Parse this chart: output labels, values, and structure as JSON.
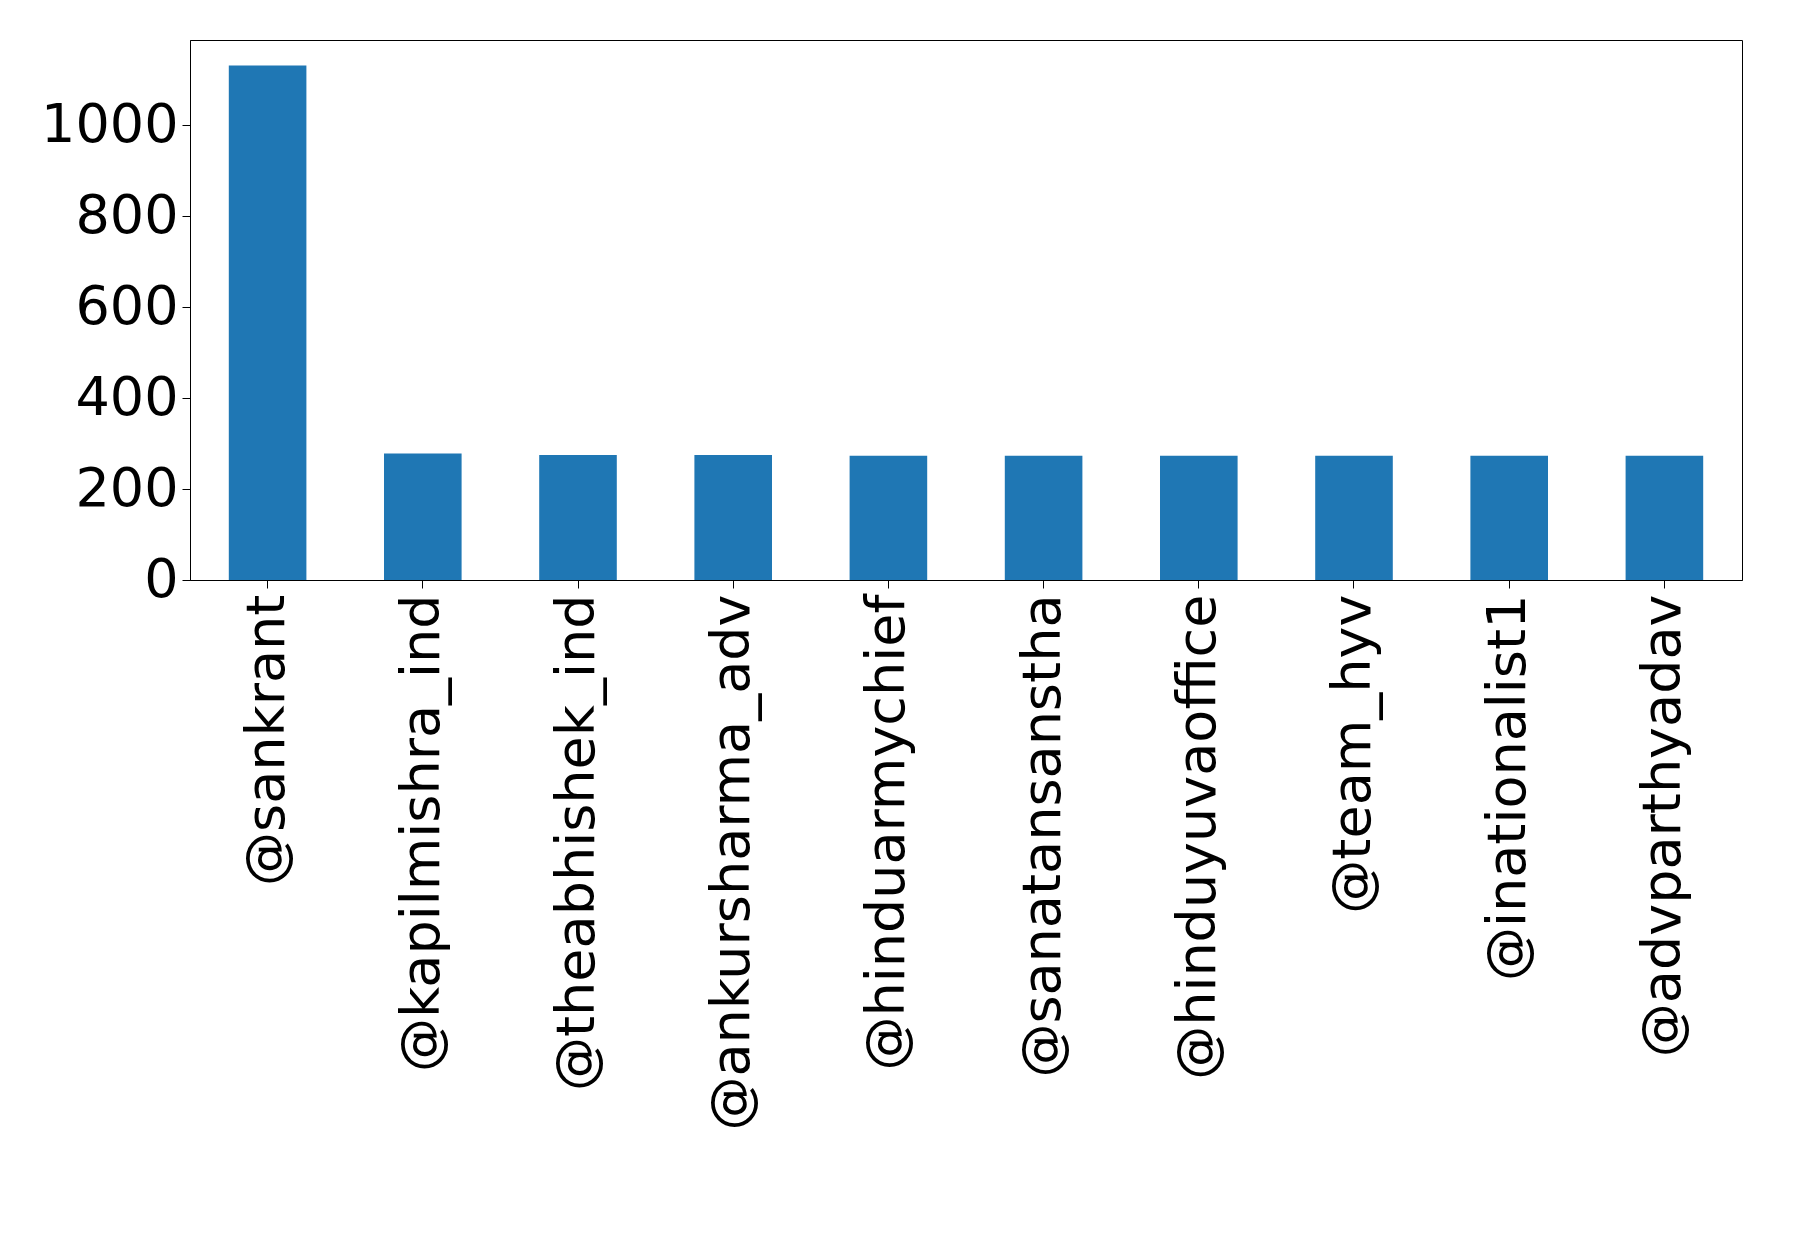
{
  "chart_data": {
    "type": "bar",
    "categories": [
      "@sankrant",
      "@kapilmishra_ind",
      "@theabhishek_ind",
      "@ankursharma_adv",
      "@hinduarmychief",
      "@sanatansanstha",
      "@hinduyuvaoffice",
      "@team_hyv",
      "@inationalist1",
      "@advparthyadav"
    ],
    "values": [
      1131,
      278,
      275,
      275,
      273,
      273,
      273,
      273,
      273,
      273
    ],
    "color": "#1f77b4",
    "ylim": [
      0,
      1187
    ],
    "yticks": [
      0,
      200,
      400,
      600,
      800,
      1000
    ],
    "grid": false
  }
}
